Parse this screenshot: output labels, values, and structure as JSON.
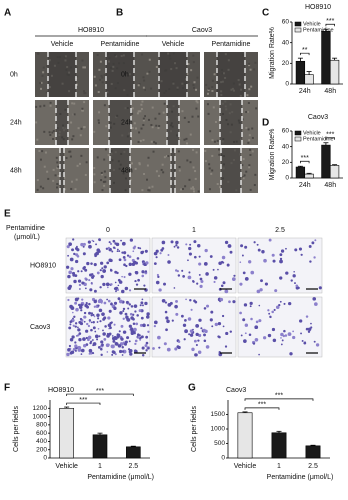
{
  "panel_labels": [
    "A",
    "B",
    "C",
    "D",
    "E",
    "F",
    "G"
  ],
  "wound_healing": [
    {
      "title": "HO8910",
      "columns": [
        "Vehicle",
        "Pentamidine"
      ],
      "rows": [
        "0h",
        "24h",
        "48h"
      ]
    },
    {
      "title": "Caov3",
      "columns": [
        "Vehicle",
        "Pentamidine"
      ],
      "rows": [
        "0h",
        "24h",
        "48h"
      ]
    }
  ],
  "transwell": {
    "title": [
      "Pentamidine",
      "(μmol/L)"
    ],
    "columns": [
      "0",
      "1",
      "2.5"
    ],
    "rows": [
      "HO8910",
      "Caov3"
    ]
  },
  "chart_data": [
    {
      "type": "bar",
      "title": "HO8910",
      "ylabel": "Migration Rate%",
      "categories": [
        "24h",
        "48h"
      ],
      "series": [
        {
          "name": "Vehicle",
          "color": "#1a1a1a",
          "values": [
            22,
            51
          ],
          "errors": [
            3,
            2
          ]
        },
        {
          "name": "Pentamidine",
          "color": "#e6e6e6",
          "values": [
            9,
            23
          ],
          "errors": [
            3,
            2
          ]
        }
      ],
      "ylim": [
        0,
        60
      ],
      "yticks": [
        0,
        20,
        40,
        60
      ],
      "legend": "upper left",
      "annotations": [
        "**",
        "***"
      ]
    },
    {
      "type": "bar",
      "title": "Caov3",
      "ylabel": "Migration Rate%",
      "categories": [
        "24h",
        "48h"
      ],
      "series": [
        {
          "name": "Vehicle",
          "color": "#1a1a1a",
          "values": [
            14,
            42
          ],
          "errors": [
            1,
            3
          ]
        },
        {
          "name": "Pentamidine",
          "color": "#e6e6e6",
          "values": [
            5,
            16
          ],
          "errors": [
            1,
            1
          ]
        }
      ],
      "ylim": [
        0,
        60
      ],
      "yticks": [
        0,
        20,
        40,
        60
      ],
      "legend": "upper left",
      "annotations": [
        "***",
        "***"
      ]
    },
    {
      "type": "bar",
      "title": "HO8910",
      "ylabel": "Cells per fields",
      "xlabel": "Pentamidine (μmol/L)",
      "categories": [
        "Vehicle",
        "1",
        "2.5"
      ],
      "values": [
        1200,
        560,
        270
      ],
      "errors": [
        30,
        40,
        15
      ],
      "colors": [
        "#e6e6e6",
        "#1a1a1a",
        "#1a1a1a"
      ],
      "ylim": [
        0,
        1400
      ],
      "yticks": [
        0,
        200,
        400,
        600,
        800,
        1000,
        1200
      ],
      "annotations": [
        "***",
        "***"
      ]
    },
    {
      "type": "bar",
      "title": "Caov3",
      "ylabel": "Cells per fields",
      "xlabel": "Pentamidine (μmol/L)",
      "categories": [
        "Vehicle",
        "1",
        "2.5"
      ],
      "values": [
        1560,
        870,
        420
      ],
      "errors": [
        30,
        50,
        20
      ],
      "colors": [
        "#e6e6e6",
        "#1a1a1a",
        "#1a1a1a"
      ],
      "ylim": [
        0,
        2000
      ],
      "yticks": [
        0,
        500,
        1000,
        1500
      ],
      "annotations": [
        "***",
        "***"
      ]
    }
  ]
}
